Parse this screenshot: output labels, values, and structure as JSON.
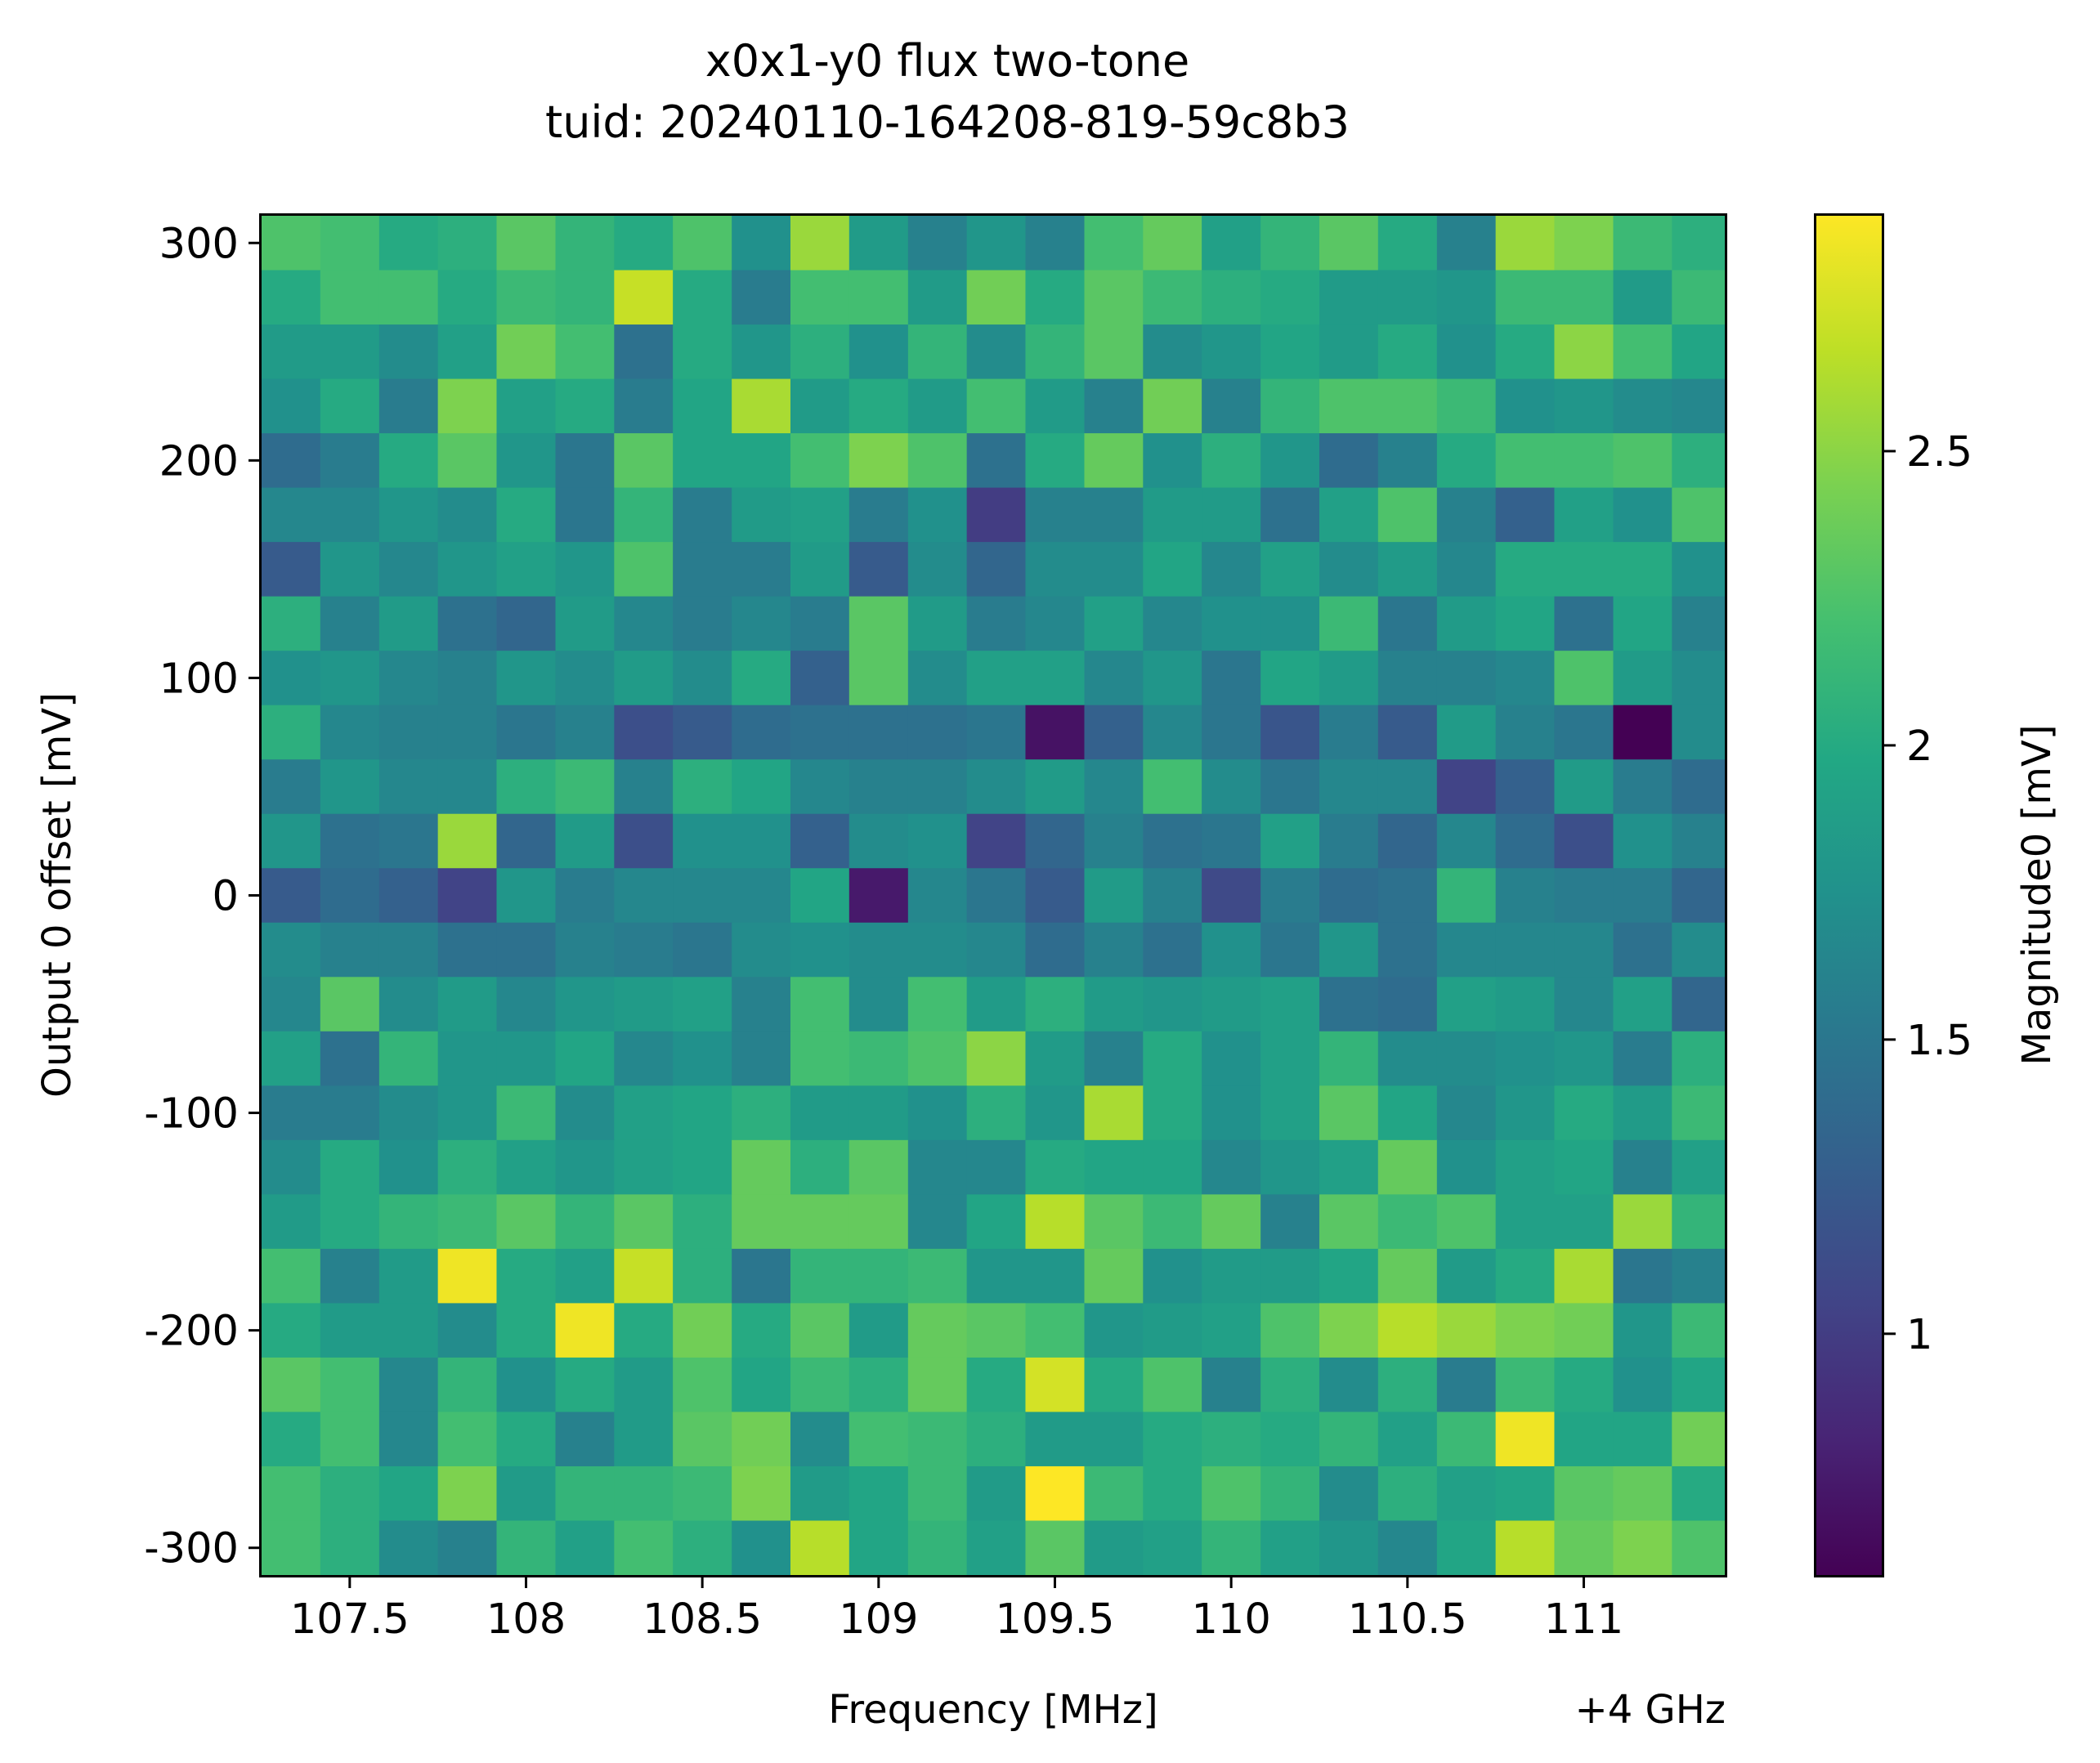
{
  "chart_data": {
    "type": "heatmap",
    "title": "x0x1-y0 flux two-tone",
    "subtitle": "tuid: 20240110-164208-819-59c8b3",
    "xlabel": "Frequency [MHz]",
    "x_offset_label": "+4 GHz",
    "ylabel": "Output 0 offset [mV]",
    "colorbar_label": "Magnitude0 [mV]",
    "colormap": "viridis",
    "xlim": [
      107.25,
      111.4
    ],
    "ylim": [
      -312.5,
      312.5
    ],
    "clim": [
      0.59,
      2.9
    ],
    "x_ticks": [
      {
        "value": 107.5,
        "label": "107.5"
      },
      {
        "value": 108.0,
        "label": "108"
      },
      {
        "value": 108.5,
        "label": "108.5"
      },
      {
        "value": 109.0,
        "label": "109"
      },
      {
        "value": 109.5,
        "label": "109.5"
      },
      {
        "value": 110.0,
        "label": "110"
      },
      {
        "value": 110.5,
        "label": "110.5"
      },
      {
        "value": 111.0,
        "label": "111"
      }
    ],
    "y_ticks": [
      {
        "value": 300,
        "label": "300"
      },
      {
        "value": 200,
        "label": "200"
      },
      {
        "value": 100,
        "label": "100"
      },
      {
        "value": 0,
        "label": "0"
      },
      {
        "value": -100,
        "label": "-100"
      },
      {
        "value": -200,
        "label": "-200"
      },
      {
        "value": -300,
        "label": "-300"
      }
    ],
    "colorbar_ticks": [
      {
        "value": 1.0,
        "label": "1"
      },
      {
        "value": 1.5,
        "label": "1.5"
      },
      {
        "value": 2.0,
        "label": "2"
      },
      {
        "value": 2.5,
        "label": "2.5"
      }
    ],
    "x": [
      107.333,
      107.5,
      107.667,
      107.833,
      108.0,
      108.167,
      108.333,
      108.5,
      108.667,
      108.833,
      109.0,
      109.167,
      109.333,
      109.5,
      109.667,
      109.833,
      110.0,
      110.167,
      110.333,
      110.5,
      110.667,
      110.833,
      111.0,
      111.167,
      111.333
    ],
    "y": [
      300,
      275,
      250,
      225,
      200,
      175,
      150,
      125,
      100,
      75,
      50,
      25,
      0,
      -25,
      -50,
      -75,
      -100,
      -125,
      -150,
      -175,
      -200,
      -225,
      -250,
      -275,
      -300
    ],
    "z": [
      [
        2.25,
        2.2,
        2.0,
        2.05,
        2.3,
        2.1,
        2.0,
        2.25,
        1.75,
        2.55,
        1.85,
        1.6,
        1.8,
        1.6,
        2.2,
        2.35,
        1.9,
        2.1,
        2.3,
        2.0,
        1.6,
        2.55,
        2.45,
        2.15,
        2.05
      ],
      [
        2.0,
        2.2,
        2.2,
        2.0,
        2.15,
        2.1,
        2.7,
        2.0,
        1.55,
        2.2,
        2.2,
        1.85,
        2.4,
        2.0,
        2.3,
        2.15,
        2.05,
        2.0,
        1.85,
        1.85,
        1.8,
        2.15,
        2.15,
        1.85,
        2.15
      ],
      [
        1.85,
        1.85,
        1.7,
        1.9,
        2.4,
        2.2,
        1.45,
        2.0,
        1.8,
        2.05,
        1.75,
        2.1,
        1.7,
        2.1,
        2.3,
        1.7,
        1.8,
        1.95,
        1.85,
        2.0,
        1.75,
        2.0,
        2.5,
        2.2,
        1.95
      ],
      [
        1.75,
        2.0,
        1.55,
        2.45,
        1.9,
        2.0,
        1.55,
        1.95,
        2.6,
        1.85,
        2.0,
        1.85,
        2.2,
        1.85,
        1.6,
        2.4,
        1.6,
        2.1,
        2.25,
        2.25,
        2.15,
        1.75,
        1.8,
        1.7,
        1.65
      ],
      [
        1.4,
        1.55,
        2.0,
        2.3,
        1.8,
        1.5,
        2.3,
        1.95,
        1.95,
        2.2,
        2.45,
        2.25,
        1.45,
        2.0,
        2.35,
        1.75,
        2.05,
        1.8,
        1.4,
        1.6,
        2.0,
        2.2,
        2.2,
        2.25,
        2.05
      ],
      [
        1.65,
        1.65,
        1.8,
        1.7,
        2.0,
        1.5,
        2.1,
        1.55,
        1.85,
        1.9,
        1.55,
        1.75,
        1.0,
        1.6,
        1.6,
        1.85,
        1.85,
        1.45,
        1.9,
        2.25,
        1.6,
        1.3,
        1.9,
        1.75,
        2.25
      ],
      [
        1.25,
        1.8,
        1.65,
        1.8,
        1.9,
        1.8,
        2.25,
        1.55,
        1.55,
        1.85,
        1.25,
        1.7,
        1.35,
        1.7,
        1.7,
        1.95,
        1.65,
        1.9,
        1.7,
        1.85,
        1.65,
        2.0,
        2.0,
        2.0,
        1.75
      ],
      [
        2.05,
        1.6,
        1.85,
        1.45,
        1.35,
        1.85,
        1.65,
        1.55,
        1.65,
        1.55,
        2.3,
        1.85,
        1.55,
        1.65,
        1.9,
        1.65,
        1.75,
        1.75,
        2.15,
        1.5,
        1.85,
        1.95,
        1.45,
        1.95,
        1.6
      ],
      [
        1.75,
        1.8,
        1.65,
        1.6,
        1.8,
        1.7,
        1.85,
        1.7,
        2.0,
        1.3,
        2.3,
        1.7,
        1.9,
        1.9,
        1.65,
        1.8,
        1.5,
        1.95,
        1.85,
        1.6,
        1.6,
        1.65,
        2.25,
        1.85,
        1.7
      ],
      [
        2.05,
        1.65,
        1.6,
        1.6,
        1.5,
        1.6,
        1.15,
        1.25,
        1.4,
        1.45,
        1.45,
        1.45,
        1.5,
        0.7,
        1.3,
        1.65,
        1.5,
        1.2,
        1.55,
        1.25,
        1.85,
        1.6,
        1.5,
        0.59,
        1.7
      ],
      [
        1.55,
        1.8,
        1.65,
        1.65,
        2.05,
        2.15,
        1.6,
        2.05,
        1.95,
        1.65,
        1.6,
        1.6,
        1.7,
        1.85,
        1.65,
        2.2,
        1.7,
        1.5,
        1.65,
        1.65,
        1.05,
        1.3,
        1.85,
        1.55,
        1.4
      ],
      [
        1.8,
        1.45,
        1.5,
        2.55,
        1.35,
        1.85,
        1.15,
        1.75,
        1.75,
        1.3,
        1.7,
        1.75,
        1.05,
        1.35,
        1.6,
        1.45,
        1.5,
        1.9,
        1.55,
        1.35,
        1.65,
        1.4,
        1.15,
        1.75,
        1.6
      ],
      [
        1.25,
        1.4,
        1.3,
        1.05,
        1.8,
        1.55,
        1.65,
        1.65,
        1.65,
        1.95,
        0.75,
        1.65,
        1.5,
        1.25,
        1.85,
        1.6,
        1.1,
        1.55,
        1.4,
        1.45,
        2.1,
        1.6,
        1.55,
        1.55,
        1.35
      ],
      [
        1.7,
        1.6,
        1.6,
        1.45,
        1.45,
        1.6,
        1.55,
        1.5,
        1.7,
        1.75,
        1.7,
        1.7,
        1.65,
        1.4,
        1.6,
        1.45,
        1.75,
        1.5,
        1.8,
        1.45,
        1.65,
        1.65,
        1.65,
        1.45,
        1.7
      ],
      [
        1.65,
        2.3,
        1.7,
        1.85,
        1.65,
        1.8,
        1.85,
        1.9,
        1.6,
        2.2,
        1.7,
        2.2,
        1.85,
        2.05,
        1.85,
        1.8,
        1.85,
        1.9,
        1.45,
        1.4,
        1.9,
        1.85,
        1.65,
        1.9,
        1.35
      ],
      [
        1.9,
        1.45,
        2.1,
        1.8,
        1.8,
        1.95,
        1.65,
        1.75,
        1.6,
        2.2,
        2.15,
        2.25,
        2.5,
        1.85,
        1.6,
        2.0,
        1.75,
        1.9,
        2.1,
        1.7,
        1.7,
        1.75,
        1.8,
        1.55,
        2.05
      ],
      [
        1.55,
        1.55,
        1.7,
        1.8,
        2.15,
        1.7,
        1.9,
        1.95,
        2.05,
        1.85,
        1.85,
        1.75,
        2.05,
        1.8,
        2.6,
        2.0,
        1.75,
        1.9,
        2.3,
        1.95,
        1.65,
        1.8,
        2.0,
        1.85,
        2.15
      ],
      [
        1.7,
        2.0,
        1.75,
        2.05,
        1.9,
        1.8,
        1.9,
        1.95,
        2.35,
        2.05,
        2.3,
        1.65,
        1.65,
        2.0,
        1.95,
        1.95,
        1.65,
        1.8,
        1.9,
        2.35,
        1.75,
        1.9,
        1.95,
        1.6,
        1.9
      ],
      [
        1.85,
        2.0,
        2.1,
        2.15,
        2.3,
        2.1,
        2.3,
        2.05,
        2.35,
        2.35,
        2.35,
        1.65,
        1.95,
        2.65,
        2.3,
        2.15,
        2.35,
        1.6,
        2.3,
        2.15,
        2.25,
        1.9,
        1.9,
        2.55,
        2.1
      ],
      [
        2.2,
        1.6,
        1.85,
        2.85,
        2.0,
        1.9,
        2.7,
        2.05,
        1.5,
        2.1,
        2.1,
        2.15,
        1.8,
        1.8,
        2.35,
        1.75,
        1.85,
        1.85,
        1.95,
        2.35,
        1.85,
        2.0,
        2.6,
        1.5,
        1.6
      ],
      [
        2.0,
        1.85,
        1.85,
        1.7,
        2.0,
        2.85,
        2.0,
        2.4,
        2.0,
        2.3,
        1.85,
        2.35,
        2.3,
        2.2,
        1.8,
        1.85,
        1.9,
        2.25,
        2.45,
        2.65,
        2.55,
        2.45,
        2.4,
        1.8,
        2.15
      ],
      [
        2.3,
        2.2,
        1.65,
        2.1,
        1.75,
        2.0,
        1.85,
        2.25,
        1.95,
        2.15,
        2.05,
        2.35,
        2.0,
        2.75,
        2.0,
        2.25,
        1.6,
        2.05,
        1.7,
        2.05,
        1.55,
        2.15,
        2.0,
        1.75,
        1.95
      ],
      [
        2.0,
        2.2,
        1.65,
        2.2,
        2.0,
        1.6,
        1.85,
        2.3,
        2.4,
        1.7,
        2.2,
        2.15,
        2.05,
        1.85,
        1.85,
        2.0,
        2.05,
        2.0,
        2.1,
        1.9,
        2.15,
        2.85,
        1.95,
        1.95,
        2.4
      ],
      [
        2.2,
        2.05,
        1.95,
        2.45,
        1.85,
        2.1,
        2.1,
        2.15,
        2.45,
        1.85,
        1.95,
        2.15,
        1.85,
        2.9,
        2.15,
        2.0,
        2.25,
        2.1,
        1.7,
        2.05,
        1.9,
        1.95,
        2.3,
        2.35,
        2.0
      ],
      [
        2.2,
        2.05,
        1.7,
        1.6,
        2.1,
        1.9,
        2.2,
        2.05,
        1.75,
        2.65,
        1.95,
        2.1,
        1.9,
        2.3,
        1.85,
        1.9,
        2.1,
        1.9,
        1.8,
        1.65,
        1.95,
        2.65,
        2.35,
        2.45,
        2.25
      ]
    ]
  }
}
